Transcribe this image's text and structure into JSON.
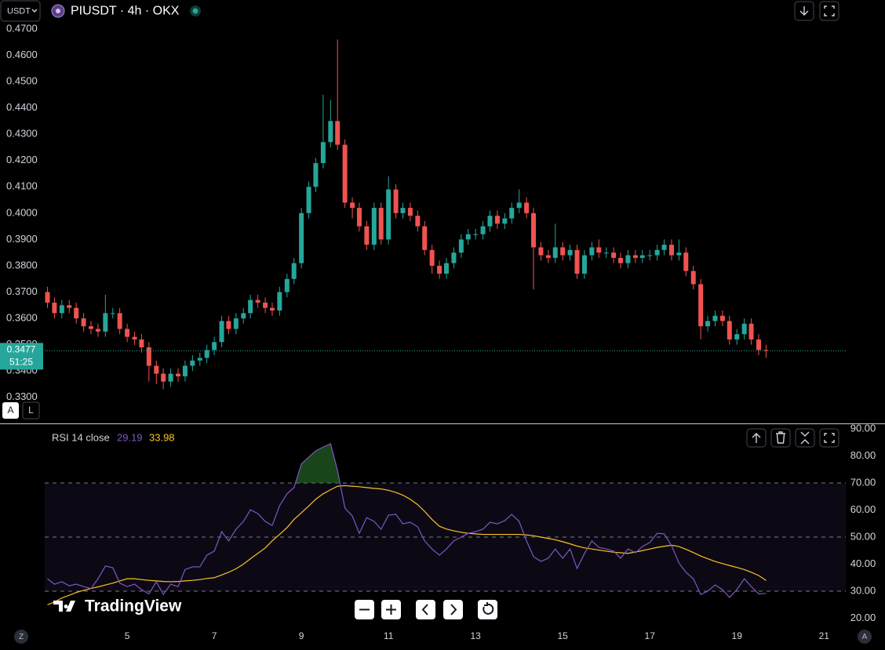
{
  "toolbar": {
    "currency": "USDT",
    "symbol": "PIUSDT · 4h · OKX"
  },
  "last_price_countdown": "51:25",
  "branding": "TradingView",
  "scale_buttons": [
    "A",
    "L"
  ],
  "corner_labels": [
    "Z",
    "A"
  ],
  "chart_data": [
    {
      "type": "candlestick",
      "up_color": "#26a69a",
      "down_color": "#ef5350",
      "xlim": [
        2.08,
        21.5
      ],
      "ylim": [
        0.3201,
        0.481
      ],
      "yticks": [
        {
          "value": 0.33,
          "label": "0.3300"
        },
        {
          "value": 0.34,
          "label": "0.3400"
        },
        {
          "value": 0.35,
          "label": "0.3500"
        },
        {
          "value": 0.36,
          "label": "0.3600"
        },
        {
          "value": 0.37,
          "label": "0.3700"
        },
        {
          "value": 0.38,
          "label": "0.3800"
        },
        {
          "value": 0.39,
          "label": "0.3900"
        },
        {
          "value": 0.4,
          "label": "0.4000"
        },
        {
          "value": 0.41,
          "label": "0.4100"
        },
        {
          "value": 0.42,
          "label": "0.4200"
        },
        {
          "value": 0.43,
          "label": "0.4300"
        },
        {
          "value": 0.44,
          "label": "0.4400"
        },
        {
          "value": 0.45,
          "label": "0.4500"
        },
        {
          "value": 0.46,
          "label": "0.4600"
        },
        {
          "value": 0.47,
          "label": "0.4700"
        }
      ],
      "x": [
        3.17,
        3.33,
        3.5,
        3.67,
        3.83,
        4,
        4.17,
        4.33,
        4.5,
        4.67,
        4.83,
        5,
        5.17,
        5.33,
        5.5,
        5.67,
        5.83,
        6,
        6.17,
        6.33,
        6.5,
        6.67,
        6.83,
        7,
        7.17,
        7.33,
        7.5,
        7.67,
        7.83,
        8,
        8.17,
        8.33,
        8.5,
        8.67,
        8.83,
        9,
        9.17,
        9.33,
        9.5,
        9.67,
        9.83,
        10,
        10.17,
        10.33,
        10.5,
        10.67,
        10.83,
        11,
        11.17,
        11.33,
        11.5,
        11.67,
        11.83,
        12,
        12.17,
        12.33,
        12.5,
        12.67,
        12.83,
        13,
        13.17,
        13.33,
        13.5,
        13.67,
        13.83,
        14,
        14.17,
        14.33,
        14.5,
        14.67,
        14.83,
        15,
        15.17,
        15.33,
        15.5,
        15.67,
        15.83,
        16,
        16.17,
        16.33,
        16.5,
        16.67,
        16.83,
        17,
        17.17,
        17.33,
        17.5,
        17.67,
        17.83,
        18,
        18.17,
        18.33,
        18.5,
        18.67,
        18.83,
        19,
        19.17,
        19.33,
        19.5,
        19.67
      ],
      "open": [
        0.37,
        0.366,
        0.362,
        0.365,
        0.364,
        0.36,
        0.357,
        0.356,
        0.355,
        0.362,
        0.362,
        0.356,
        0.353,
        0.352,
        0.349,
        0.342,
        0.339,
        0.336,
        0.339,
        0.338,
        0.342,
        0.344,
        0.345,
        0.348,
        0.351,
        0.359,
        0.356,
        0.36,
        0.362,
        0.367,
        0.366,
        0.364,
        0.363,
        0.37,
        0.375,
        0.381,
        0.4,
        0.41,
        0.419,
        0.427,
        0.435,
        0.426,
        0.404,
        0.402,
        0.395,
        0.388,
        0.402,
        0.39,
        0.409,
        0.4,
        0.402,
        0.399,
        0.395,
        0.386,
        0.38,
        0.377,
        0.381,
        0.385,
        0.39,
        0.392,
        0.392,
        0.395,
        0.399,
        0.396,
        0.398,
        0.402,
        0.404,
        0.4,
        0.387,
        0.384,
        0.383,
        0.387,
        0.384,
        0.386,
        0.377,
        0.384,
        0.387,
        0.385,
        0.385,
        0.383,
        0.381,
        0.384,
        0.383,
        0.384,
        0.384,
        0.386,
        0.388,
        0.384,
        0.385,
        0.378,
        0.373,
        0.357,
        0.359,
        0.361,
        0.359,
        0.352,
        0.354,
        0.358,
        0.352,
        0.348
      ],
      "high": [
        0.372,
        0.368,
        0.367,
        0.367,
        0.366,
        0.362,
        0.359,
        0.358,
        0.369,
        0.364,
        0.364,
        0.358,
        0.355,
        0.354,
        0.351,
        0.344,
        0.341,
        0.341,
        0.341,
        0.344,
        0.346,
        0.347,
        0.35,
        0.353,
        0.361,
        0.361,
        0.362,
        0.364,
        0.369,
        0.369,
        0.368,
        0.366,
        0.372,
        0.377,
        0.383,
        0.402,
        0.412,
        0.421,
        0.445,
        0.443,
        0.466,
        0.428,
        0.406,
        0.404,
        0.397,
        0.404,
        0.404,
        0.414,
        0.411,
        0.404,
        0.404,
        0.401,
        0.397,
        0.388,
        0.382,
        0.383,
        0.387,
        0.392,
        0.394,
        0.394,
        0.397,
        0.401,
        0.401,
        0.4,
        0.404,
        0.409,
        0.406,
        0.402,
        0.389,
        0.386,
        0.396,
        0.389,
        0.388,
        0.388,
        0.386,
        0.389,
        0.39,
        0.387,
        0.387,
        0.385,
        0.386,
        0.386,
        0.386,
        0.386,
        0.388,
        0.39,
        0.39,
        0.39,
        0.387,
        0.38,
        0.375,
        0.361,
        0.363,
        0.363,
        0.361,
        0.356,
        0.36,
        0.36,
        0.354,
        0.35
      ],
      "low": [
        0.364,
        0.36,
        0.36,
        0.362,
        0.358,
        0.355,
        0.354,
        0.353,
        0.353,
        0.36,
        0.354,
        0.351,
        0.35,
        0.347,
        0.336,
        0.335,
        0.333,
        0.334,
        0.336,
        0.336,
        0.34,
        0.342,
        0.343,
        0.346,
        0.349,
        0.354,
        0.354,
        0.358,
        0.36,
        0.364,
        0.362,
        0.361,
        0.361,
        0.368,
        0.373,
        0.379,
        0.398,
        0.408,
        0.417,
        0.425,
        0.424,
        0.402,
        0.398,
        0.393,
        0.386,
        0.386,
        0.388,
        0.388,
        0.398,
        0.398,
        0.397,
        0.393,
        0.384,
        0.377,
        0.375,
        0.375,
        0.379,
        0.383,
        0.388,
        0.39,
        0.39,
        0.393,
        0.394,
        0.394,
        0.396,
        0.4,
        0.398,
        0.371,
        0.382,
        0.381,
        0.381,
        0.382,
        0.382,
        0.375,
        0.375,
        0.382,
        0.383,
        0.383,
        0.381,
        0.379,
        0.379,
        0.381,
        0.381,
        0.382,
        0.382,
        0.384,
        0.382,
        0.382,
        0.376,
        0.371,
        0.352,
        0.355,
        0.357,
        0.357,
        0.35,
        0.35,
        0.352,
        0.35,
        0.346,
        0.345
      ],
      "close": [
        0.366,
        0.362,
        0.365,
        0.364,
        0.36,
        0.357,
        0.356,
        0.355,
        0.362,
        0.362,
        0.356,
        0.353,
        0.352,
        0.349,
        0.342,
        0.339,
        0.336,
        0.339,
        0.338,
        0.342,
        0.344,
        0.345,
        0.348,
        0.351,
        0.359,
        0.356,
        0.36,
        0.362,
        0.367,
        0.366,
        0.364,
        0.363,
        0.37,
        0.375,
        0.381,
        0.4,
        0.41,
        0.419,
        0.427,
        0.435,
        0.426,
        0.404,
        0.402,
        0.395,
        0.388,
        0.402,
        0.39,
        0.409,
        0.4,
        0.402,
        0.399,
        0.395,
        0.386,
        0.38,
        0.377,
        0.381,
        0.385,
        0.39,
        0.392,
        0.392,
        0.395,
        0.399,
        0.396,
        0.398,
        0.402,
        0.404,
        0.4,
        0.387,
        0.384,
        0.383,
        0.387,
        0.384,
        0.386,
        0.377,
        0.384,
        0.387,
        0.385,
        0.385,
        0.383,
        0.381,
        0.384,
        0.383,
        0.384,
        0.384,
        0.386,
        0.388,
        0.384,
        0.385,
        0.378,
        0.373,
        0.357,
        0.359,
        0.361,
        0.359,
        0.352,
        0.354,
        0.358,
        0.352,
        0.348,
        0.3477
      ]
    },
    {
      "type": "line",
      "title": "RSI 14 close",
      "xlim": [
        2.08,
        21.5
      ],
      "ylim": [
        16.67,
        92.03
      ],
      "xticks": [
        5,
        7,
        9,
        11,
        13,
        15,
        17,
        19,
        21
      ],
      "yticks": [
        {
          "value": 20,
          "label": "20.00"
        },
        {
          "value": 30,
          "label": "30.00"
        },
        {
          "value": 40,
          "label": "40.00"
        },
        {
          "value": 50,
          "label": "50.00"
        },
        {
          "value": 60,
          "label": "60.00"
        },
        {
          "value": 70,
          "label": "70.00"
        },
        {
          "value": 80,
          "label": "80.00"
        },
        {
          "value": 90,
          "label": "90.00"
        }
      ],
      "levels": [
        70,
        50,
        30
      ],
      "band_color": "#7e57c2",
      "overbought_color": "#2e7d32",
      "x": [
        3.17,
        3.33,
        3.5,
        3.67,
        3.83,
        4,
        4.17,
        4.33,
        4.5,
        4.67,
        4.83,
        5,
        5.17,
        5.33,
        5.5,
        5.67,
        5.83,
        6,
        6.17,
        6.33,
        6.5,
        6.67,
        6.83,
        7,
        7.17,
        7.33,
        7.5,
        7.67,
        7.83,
        8,
        8.17,
        8.33,
        8.5,
        8.67,
        8.83,
        9,
        9.17,
        9.33,
        9.5,
        9.67,
        9.83,
        10,
        10.17,
        10.33,
        10.5,
        10.67,
        10.83,
        11,
        11.17,
        11.33,
        11.5,
        11.67,
        11.83,
        12,
        12.17,
        12.33,
        12.5,
        12.67,
        12.83,
        13,
        13.17,
        13.33,
        13.5,
        13.67,
        13.83,
        14,
        14.17,
        14.33,
        14.5,
        14.67,
        14.83,
        15,
        15.17,
        15.33,
        15.5,
        15.67,
        15.83,
        16,
        16.17,
        16.33,
        16.5,
        16.67,
        16.83,
        17,
        17.17,
        17.33,
        17.5,
        17.67,
        17.83,
        18,
        18.17,
        18.33,
        18.5,
        18.67,
        18.83,
        19,
        19.17,
        19.33,
        19.5,
        19.67
      ],
      "series": [
        {
          "name": "RSI",
          "color": "#7e57c2",
          "values": [
            34.6,
            32.6,
            33.5,
            32,
            32.6,
            31.7,
            31,
            34.6,
            39.3,
            38.7,
            33,
            31.7,
            32.6,
            30.6,
            29,
            33.5,
            28.8,
            32.6,
            31.7,
            38,
            39,
            39,
            43.3,
            44.8,
            52,
            48.6,
            52.9,
            55.8,
            60.1,
            58.7,
            55.8,
            54.3,
            61.6,
            66,
            68.3,
            77,
            79.6,
            81.9,
            83.3,
            84.5,
            74.6,
            60.7,
            57.8,
            51.4,
            57.2,
            55.8,
            52.9,
            58.1,
            58.4,
            54.9,
            55.5,
            53.8,
            48.6,
            45.6,
            43.3,
            45.6,
            48.6,
            50,
            51.4,
            52,
            52.9,
            55.5,
            54.9,
            56.1,
            58.4,
            55.8,
            48.6,
            42.8,
            41,
            42.2,
            45.6,
            42.2,
            45.6,
            38.4,
            43.9,
            48.6,
            46.2,
            45.6,
            44.8,
            42.2,
            45.6,
            44.2,
            46.5,
            48,
            51.4,
            51.2,
            46.8,
            40.4,
            37,
            34.6,
            28.8,
            30,
            32.3,
            30.6,
            27.7,
            30.6,
            34.6,
            31.7,
            29,
            29.19
          ]
        },
        {
          "name": "RSI MA",
          "color": "#f7c325",
          "values": [
            25,
            26,
            27.5,
            28.5,
            29.5,
            30.3,
            31,
            31.6,
            32.3,
            33,
            33.8,
            34.6,
            34.6,
            34.3,
            34,
            33.8,
            33.6,
            33.5,
            33.6,
            33.8,
            34,
            34.3,
            34.7,
            35,
            36,
            37,
            38.3,
            40,
            42,
            44,
            46,
            48.6,
            51,
            53.5,
            56.5,
            59,
            61.5,
            64,
            66,
            67.5,
            68.8,
            69,
            68.8,
            68.6,
            68.3,
            68,
            67.8,
            67.3,
            66.5,
            65.5,
            64,
            62,
            59.5,
            56.5,
            54,
            53,
            52.3,
            51.8,
            51.4,
            51.2,
            51,
            51,
            51,
            51,
            51,
            51,
            50.8,
            50.5,
            50,
            49.5,
            49,
            48.3,
            47.5,
            46.7,
            46,
            45.6,
            45.2,
            44.8,
            44.4,
            44.2,
            44,
            44.5,
            45,
            45.6,
            46.2,
            46.6,
            47,
            46.5,
            45.5,
            44.3,
            43,
            42,
            41,
            40.2,
            39.5,
            38.8,
            38,
            37,
            35.8,
            33.98
          ]
        }
      ]
    }
  ]
}
